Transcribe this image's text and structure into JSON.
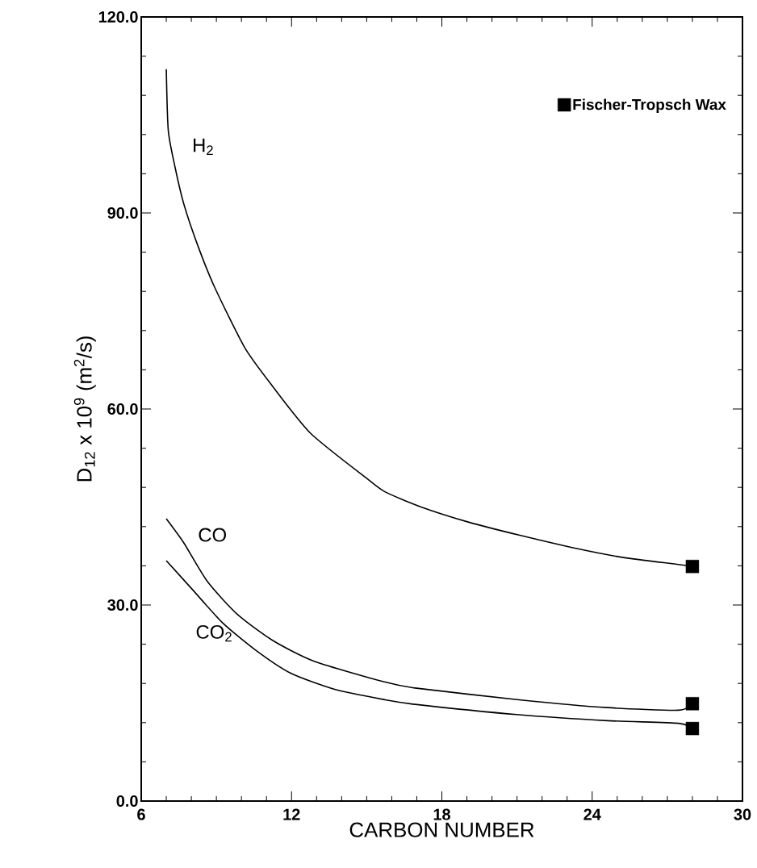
{
  "chart_data": {
    "type": "line",
    "xlabel": "CARBON NUMBER",
    "ylabel": "D$_{12}$ x 10$^{9}$ (m$^{2}$/s)",
    "xlim": [
      6,
      30
    ],
    "ylim": [
      0,
      120
    ],
    "xticks": [
      6,
      12,
      18,
      24,
      30
    ],
    "yticks": [
      {
        "value": 0,
        "label": "0.0"
      },
      {
        "value": 30,
        "label": "30.0"
      },
      {
        "value": 60,
        "label": "60.0"
      },
      {
        "value": 90,
        "label": "90.0"
      },
      {
        "value": 120,
        "label": "120.0"
      }
    ],
    "legend": "top right",
    "grid": false,
    "line_style": "solid",
    "series": [
      {
        "name": "H$_{2}$",
        "color": "#000000",
        "marker": "none",
        "x": [
          7.0,
          7.08,
          7.35,
          7.69,
          8.24,
          8.91,
          10.13,
          11.24,
          12.78,
          15.16,
          15.74,
          17.17,
          19.05,
          21.08,
          23.43,
          25.2,
          27.45,
          28.0
        ],
        "values": [
          112,
          102.6,
          97,
          91.5,
          85.2,
          78.8,
          69.4,
          63.5,
          56.2,
          48.9,
          47.3,
          45.0,
          42.7,
          40.7,
          38.6,
          37.3,
          36.2,
          35.9
        ]
      },
      {
        "name": "CO",
        "color": "#000000",
        "marker": "none",
        "x": [
          7.0,
          7.7,
          8.64,
          9.83,
          11.24,
          12.9,
          15.74,
          16.93,
          21.08,
          24.6,
          27.45,
          28.0
        ],
        "values": [
          43.2,
          39.5,
          33.6,
          28.6,
          24.6,
          21.4,
          18.2,
          17.3,
          15.5,
          14.3,
          13.9,
          14.9
        ]
      },
      {
        "name": "CO$_{2}$",
        "color": "#000000",
        "marker": "none",
        "x": [
          7.0,
          8.06,
          9.24,
          10.53,
          11.95,
          13.72,
          15.74,
          16.93,
          21.08,
          24.6,
          27.45,
          28.0
        ],
        "values": [
          36.8,
          32.3,
          27.3,
          23.2,
          19.6,
          17.1,
          15.5,
          14.8,
          13.2,
          12.3,
          11.9,
          11.1
        ]
      },
      {
        "name": "Fischer-Tropsch Wax",
        "type": "scatter",
        "color": "#000000",
        "marker": "square",
        "x": [
          28,
          28,
          28
        ],
        "values": [
          35.9,
          14.9,
          11.1
        ]
      }
    ]
  }
}
